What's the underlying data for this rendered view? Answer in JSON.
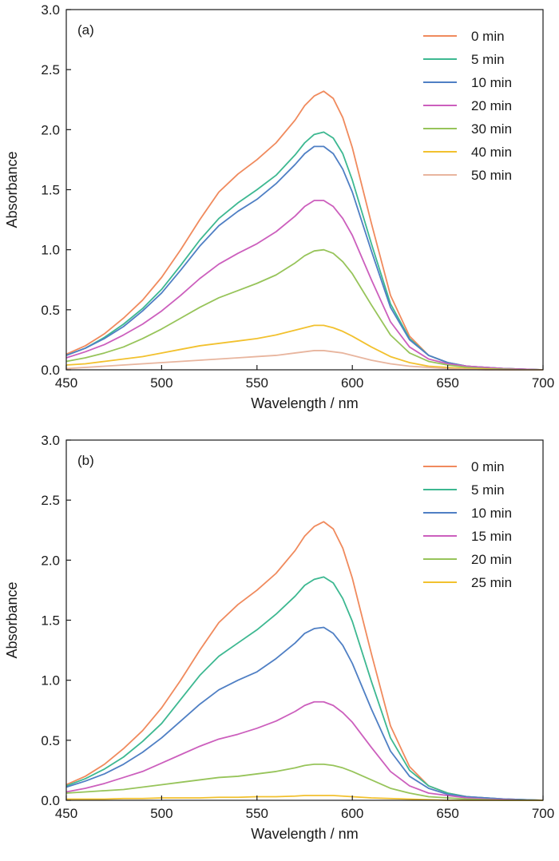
{
  "chart_data": [
    {
      "type": "line",
      "panel_label": "(a)",
      "xlabel": "Wavelength / nm",
      "ylabel": "Absorbance",
      "xlim": [
        450,
        700
      ],
      "ylim": [
        0,
        3.0
      ],
      "x_ticks": [
        "450",
        "500",
        "550",
        "600",
        "650",
        "700"
      ],
      "y_ticks": [
        "0.0",
        "0.5",
        "1.0",
        "1.5",
        "2.0",
        "2.5",
        "3.0"
      ],
      "legend_position": "top-right",
      "grid": false,
      "x": [
        450,
        460,
        470,
        480,
        490,
        500,
        510,
        520,
        530,
        540,
        550,
        560,
        570,
        575,
        580,
        585,
        590,
        595,
        600,
        610,
        620,
        630,
        640,
        650,
        660,
        670,
        680,
        690,
        700
      ],
      "series": [
        {
          "name": "0 min",
          "color": "#F08A5D",
          "values": [
            0.13,
            0.2,
            0.3,
            0.43,
            0.58,
            0.77,
            1.0,
            1.25,
            1.48,
            1.63,
            1.75,
            1.89,
            2.08,
            2.2,
            2.28,
            2.32,
            2.26,
            2.1,
            1.85,
            1.22,
            0.62,
            0.28,
            0.12,
            0.06,
            0.03,
            0.02,
            0.01,
            0.005,
            0.0
          ]
        },
        {
          "name": "5 min",
          "color": "#3DB891",
          "values": [
            0.12,
            0.18,
            0.27,
            0.38,
            0.51,
            0.67,
            0.87,
            1.08,
            1.26,
            1.39,
            1.5,
            1.62,
            1.79,
            1.89,
            1.96,
            1.98,
            1.93,
            1.8,
            1.58,
            1.05,
            0.55,
            0.26,
            0.12,
            0.06,
            0.03,
            0.02,
            0.01,
            0.005,
            0.0
          ]
        },
        {
          "name": "10 min",
          "color": "#4F7FC4",
          "values": [
            0.12,
            0.18,
            0.26,
            0.36,
            0.49,
            0.64,
            0.83,
            1.03,
            1.2,
            1.32,
            1.42,
            1.55,
            1.71,
            1.8,
            1.86,
            1.86,
            1.8,
            1.67,
            1.48,
            0.99,
            0.52,
            0.25,
            0.12,
            0.06,
            0.03,
            0.02,
            0.01,
            0.005,
            0.0
          ]
        },
        {
          "name": "20 min",
          "color": "#CC5FBD",
          "values": [
            0.1,
            0.15,
            0.21,
            0.29,
            0.38,
            0.49,
            0.62,
            0.76,
            0.88,
            0.97,
            1.05,
            1.15,
            1.28,
            1.36,
            1.41,
            1.41,
            1.36,
            1.26,
            1.12,
            0.75,
            0.4,
            0.19,
            0.09,
            0.05,
            0.03,
            0.02,
            0.01,
            0.005,
            0.0
          ]
        },
        {
          "name": "30 min",
          "color": "#97C45A",
          "values": [
            0.07,
            0.1,
            0.14,
            0.19,
            0.26,
            0.34,
            0.43,
            0.52,
            0.6,
            0.66,
            0.72,
            0.79,
            0.89,
            0.95,
            0.99,
            1.0,
            0.97,
            0.9,
            0.8,
            0.54,
            0.29,
            0.14,
            0.07,
            0.04,
            0.02,
            0.01,
            0.005,
            0.0,
            0.0
          ]
        },
        {
          "name": "40 min",
          "color": "#F2C12E",
          "values": [
            0.04,
            0.05,
            0.07,
            0.09,
            0.11,
            0.14,
            0.17,
            0.2,
            0.22,
            0.24,
            0.26,
            0.29,
            0.33,
            0.35,
            0.37,
            0.37,
            0.35,
            0.32,
            0.28,
            0.19,
            0.11,
            0.06,
            0.03,
            0.02,
            0.01,
            0.005,
            0.0,
            0.0,
            0.0
          ]
        },
        {
          "name": "50 min",
          "color": "#E8B59E",
          "values": [
            0.01,
            0.02,
            0.03,
            0.04,
            0.05,
            0.06,
            0.07,
            0.08,
            0.09,
            0.1,
            0.11,
            0.12,
            0.14,
            0.15,
            0.16,
            0.16,
            0.15,
            0.14,
            0.12,
            0.08,
            0.05,
            0.03,
            0.02,
            0.01,
            0.005,
            0.0,
            0.0,
            0.0,
            0.0
          ]
        }
      ]
    },
    {
      "type": "line",
      "panel_label": "(b)",
      "xlabel": "Wavelength / nm",
      "ylabel": "Absorbance",
      "xlim": [
        450,
        700
      ],
      "ylim": [
        0,
        3.0
      ],
      "x_ticks": [
        "450",
        "500",
        "550",
        "600",
        "650",
        "700"
      ],
      "y_ticks": [
        "0.0",
        "0.5",
        "1.0",
        "1.5",
        "2.0",
        "2.5",
        "3.0"
      ],
      "legend_position": "top-right",
      "grid": false,
      "x": [
        450,
        460,
        470,
        480,
        490,
        500,
        510,
        520,
        530,
        540,
        550,
        560,
        570,
        575,
        580,
        585,
        590,
        595,
        600,
        610,
        620,
        630,
        640,
        650,
        660,
        670,
        680,
        690,
        700
      ],
      "series": [
        {
          "name": "0 min",
          "color": "#F08A5D",
          "values": [
            0.13,
            0.2,
            0.3,
            0.43,
            0.58,
            0.77,
            1.0,
            1.25,
            1.48,
            1.63,
            1.75,
            1.89,
            2.08,
            2.2,
            2.28,
            2.32,
            2.26,
            2.1,
            1.85,
            1.22,
            0.62,
            0.28,
            0.12,
            0.06,
            0.03,
            0.02,
            0.01,
            0.005,
            0.0
          ]
        },
        {
          "name": "5 min",
          "color": "#3DB891",
          "values": [
            0.12,
            0.18,
            0.26,
            0.36,
            0.49,
            0.64,
            0.84,
            1.04,
            1.2,
            1.31,
            1.42,
            1.55,
            1.7,
            1.79,
            1.84,
            1.86,
            1.81,
            1.68,
            1.49,
            0.99,
            0.52,
            0.25,
            0.12,
            0.06,
            0.03,
            0.02,
            0.01,
            0.005,
            0.0
          ]
        },
        {
          "name": "10 min",
          "color": "#4F7FC4",
          "values": [
            0.11,
            0.16,
            0.22,
            0.3,
            0.4,
            0.52,
            0.66,
            0.8,
            0.92,
            1.0,
            1.07,
            1.18,
            1.31,
            1.39,
            1.43,
            1.44,
            1.39,
            1.29,
            1.14,
            0.76,
            0.41,
            0.2,
            0.1,
            0.05,
            0.03,
            0.02,
            0.01,
            0.005,
            0.0
          ]
        },
        {
          "name": "15 min",
          "color": "#CC5FBD",
          "values": [
            0.07,
            0.1,
            0.14,
            0.19,
            0.24,
            0.31,
            0.38,
            0.45,
            0.51,
            0.55,
            0.6,
            0.66,
            0.74,
            0.79,
            0.82,
            0.82,
            0.79,
            0.73,
            0.65,
            0.44,
            0.24,
            0.12,
            0.06,
            0.04,
            0.02,
            0.01,
            0.005,
            0.0,
            0.0
          ]
        },
        {
          "name": "20 min",
          "color": "#97C45A",
          "values": [
            0.06,
            0.07,
            0.08,
            0.09,
            0.11,
            0.13,
            0.15,
            0.17,
            0.19,
            0.2,
            0.22,
            0.24,
            0.27,
            0.29,
            0.3,
            0.3,
            0.29,
            0.27,
            0.24,
            0.17,
            0.1,
            0.06,
            0.03,
            0.02,
            0.01,
            0.005,
            0.0,
            0.0,
            0.0
          ]
        },
        {
          "name": "25 min",
          "color": "#F2C12E",
          "values": [
            0.01,
            0.01,
            0.01,
            0.015,
            0.015,
            0.02,
            0.02,
            0.02,
            0.025,
            0.025,
            0.03,
            0.03,
            0.035,
            0.04,
            0.04,
            0.04,
            0.04,
            0.035,
            0.03,
            0.02,
            0.015,
            0.01,
            0.005,
            0.0,
            0.0,
            0.0,
            0.0,
            0.0,
            0.0
          ]
        }
      ]
    }
  ]
}
